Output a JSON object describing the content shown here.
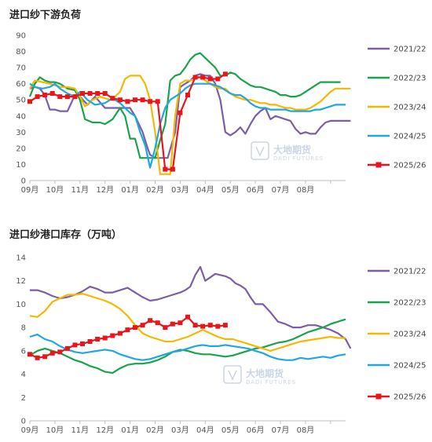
{
  "charts_meta": {
    "watermark": {
      "name": "大地期货",
      "sub": "DADI FUTURES"
    }
  },
  "chart_data": [
    {
      "type": "line",
      "title": "进口纱下游负荷",
      "xlabel": "",
      "ylabel": "",
      "ylim": [
        0,
        90
      ],
      "yticks": [
        0,
        10,
        20,
        30,
        40,
        50,
        60,
        70,
        80,
        90
      ],
      "month_labels": [
        "09月",
        "10月",
        "11月",
        "12月",
        "01月",
        "02月",
        "03月",
        "04月",
        "05月",
        "06月",
        "07月",
        "08月"
      ],
      "grid": false,
      "legend_position": "right",
      "series": [
        {
          "name": "2021/22",
          "color": "#7b5ea7",
          "marker": false,
          "x": [
            0,
            0.2,
            0.4,
            0.6,
            0.8,
            1.0,
            1.2,
            1.5,
            1.8,
            2.0,
            2.3,
            2.6,
            3.0,
            3.3,
            3.6,
            4.0,
            4.2,
            4.5,
            4.7,
            4.8,
            5.0,
            5.1,
            5.3,
            5.5,
            5.8,
            6.0,
            6.2,
            6.4,
            6.6,
            6.8,
            7.0,
            7.2,
            7.4,
            7.6,
            7.8,
            8.0,
            8.2,
            8.4,
            8.6,
            8.8,
            9.0,
            9.2,
            9.4,
            9.6,
            9.8,
            10.0,
            10.2,
            10.4,
            10.6,
            10.8,
            11.0,
            11.2,
            11.4,
            11.6,
            11.8,
            12.0,
            12.2,
            12.4,
            12.6,
            12.8
          ],
          "y": [
            57,
            58,
            57,
            53,
            44,
            44,
            43,
            43,
            53,
            52,
            47,
            52,
            45,
            45,
            45,
            45,
            40,
            30,
            20,
            16,
            14,
            14,
            14,
            14,
            30,
            58,
            60,
            62,
            65,
            66,
            65,
            65,
            60,
            50,
            30,
            28,
            30,
            33,
            29,
            35,
            40,
            43,
            45,
            38,
            40,
            39,
            38,
            37,
            32,
            29,
            30,
            29,
            29,
            33,
            36,
            37,
            37,
            37,
            37,
            37
          ]
        },
        {
          "name": "2022/23",
          "color": "#1aa34a",
          "marker": false,
          "x": [
            0,
            0.2,
            0.4,
            0.6,
            0.8,
            1.0,
            1.2,
            1.5,
            1.8,
            2.0,
            2.2,
            2.5,
            2.8,
            3.0,
            3.3,
            3.6,
            3.8,
            4.0,
            4.2,
            4.4,
            4.6,
            4.8,
            5.0,
            5.2,
            5.4,
            5.6,
            5.8,
            6.0,
            6.2,
            6.4,
            6.6,
            6.8,
            7.0,
            7.2,
            7.4,
            7.6,
            7.8,
            8.0,
            8.2,
            8.4,
            8.6,
            8.8,
            9.0,
            9.2,
            9.4,
            9.6,
            9.8,
            10.0,
            10.2,
            10.4,
            10.6,
            10.8,
            11.0,
            11.2,
            11.4,
            11.6,
            11.8,
            12.0,
            12.2,
            12.4
          ],
          "y": [
            52,
            60,
            64,
            62,
            61,
            61,
            60,
            57,
            56,
            50,
            38,
            36,
            36,
            35,
            38,
            45,
            40,
            26,
            26,
            14,
            14,
            14,
            14,
            25,
            35,
            62,
            65,
            66,
            70,
            75,
            78,
            79,
            76,
            73,
            70,
            65,
            65,
            67,
            66,
            63,
            61,
            59,
            58,
            58,
            57,
            56,
            55,
            53,
            53,
            52,
            52,
            53,
            55,
            57,
            59,
            61,
            61,
            61,
            61,
            61
          ]
        },
        {
          "name": "2023/24",
          "color": "#f5b800",
          "marker": false,
          "x": [
            0,
            0.2,
            0.5,
            0.8,
            1.0,
            1.2,
            1.5,
            1.8,
            2.0,
            2.2,
            2.5,
            2.8,
            3.0,
            3.2,
            3.4,
            3.6,
            3.8,
            4.0,
            4.2,
            4.4,
            4.6,
            4.8,
            5.0,
            5.2,
            5.4,
            5.6,
            5.8,
            6.0,
            6.2,
            6.4,
            6.6,
            6.8,
            7.0,
            7.2,
            7.4,
            7.6,
            7.8,
            8.0,
            8.2,
            8.4,
            8.6,
            8.8,
            9.0,
            9.2,
            9.4,
            9.6,
            9.8,
            10.0,
            10.2,
            10.4,
            10.6,
            10.8,
            11.0,
            11.2,
            11.4,
            11.6,
            11.8,
            12.0,
            12.2,
            12.4,
            12.6,
            12.8
          ],
          "y": [
            57,
            62,
            61,
            60,
            59,
            58,
            58,
            57,
            52,
            46,
            50,
            52,
            51,
            50,
            52,
            55,
            63,
            65,
            65,
            65,
            60,
            50,
            30,
            4,
            4,
            4,
            40,
            60,
            62,
            62,
            63,
            64,
            62,
            60,
            58,
            57,
            57,
            54,
            52,
            51,
            50,
            50,
            49,
            48,
            48,
            47,
            47,
            46,
            45,
            45,
            44,
            44,
            44,
            45,
            47,
            49,
            52,
            55,
            57,
            57,
            57,
            57
          ]
        },
        {
          "name": "2024/25",
          "color": "#1ea7e1",
          "marker": false,
          "x": [
            0,
            0.2,
            0.5,
            0.8,
            1.0,
            1.2,
            1.5,
            1.8,
            2.0,
            2.3,
            2.6,
            3.0,
            3.2,
            3.4,
            3.6,
            3.8,
            4.0,
            4.2,
            4.4,
            4.6,
            4.8,
            5.0,
            5.2,
            5.4,
            5.6,
            5.8,
            6.0,
            6.2,
            6.4,
            6.6,
            6.8,
            7.0,
            7.2,
            7.4,
            7.6,
            7.8,
            8.0,
            8.2,
            8.4,
            8.6,
            8.8,
            9.0,
            9.2,
            9.4,
            9.6,
            9.8,
            10.0,
            10.2,
            10.4,
            10.6,
            10.8,
            11.0,
            11.2,
            11.4,
            11.6,
            11.8,
            12.0,
            12.2,
            12.4,
            12.6
          ],
          "y": [
            60,
            58,
            57,
            58,
            60,
            57,
            54,
            52,
            55,
            50,
            47,
            48,
            50,
            50,
            48,
            45,
            42,
            40,
            30,
            22,
            8,
            20,
            35,
            45,
            50,
            52,
            54,
            57,
            59,
            60,
            60,
            60,
            60,
            59,
            58,
            56,
            54,
            53,
            53,
            51,
            48,
            46,
            45,
            45,
            44,
            44,
            44,
            44,
            43,
            43,
            43,
            43,
            43,
            44,
            44,
            45,
            46,
            47,
            47,
            47
          ]
        },
        {
          "name": "2025/26",
          "color": "#e8161b",
          "marker": true,
          "x": [
            0,
            0.3,
            0.6,
            0.9,
            1.2,
            1.5,
            1.8,
            2.1,
            2.4,
            2.7,
            3.0,
            3.3,
            3.6,
            3.9,
            4.2,
            4.5,
            4.8,
            5.1,
            5.4,
            5.7,
            6.0,
            6.3,
            6.6,
            6.9,
            7.2,
            7.5,
            7.8
          ],
          "y": [
            49,
            52,
            53,
            54,
            52,
            52,
            52,
            54,
            54,
            54,
            54,
            51,
            50,
            49,
            50,
            50,
            49,
            49,
            7,
            7,
            42,
            53,
            64,
            64,
            63,
            63,
            66
          ]
        }
      ]
    },
    {
      "type": "line",
      "title": "进口纱港口库存（万吨）",
      "xlabel": "",
      "ylabel": "",
      "ylim": [
        0,
        14
      ],
      "yticks": [
        0,
        2,
        4,
        6,
        8,
        10,
        12,
        14
      ],
      "month_labels": [
        "09月",
        "10月",
        "11月",
        "12月",
        "01月",
        "02月",
        "03月",
        "04月",
        "05月",
        "06月",
        "07月",
        "08月"
      ],
      "grid": false,
      "legend_position": "right",
      "series": [
        {
          "name": "2021/22",
          "color": "#7b5ea7",
          "marker": false,
          "x": [
            0,
            0.3,
            0.6,
            0.9,
            1.2,
            1.5,
            1.8,
            2.1,
            2.4,
            2.7,
            3.0,
            3.3,
            3.6,
            3.9,
            4.2,
            4.5,
            4.8,
            5.1,
            5.4,
            5.7,
            6.0,
            6.2,
            6.4,
            6.6,
            6.8,
            7.0,
            7.2,
            7.4,
            7.6,
            7.8,
            8.0,
            8.2,
            8.4,
            8.6,
            8.8,
            9.0,
            9.3,
            9.6,
            9.9,
            10.2,
            10.5,
            10.8,
            11.1,
            11.4,
            11.7,
            12.0,
            12.3,
            12.6,
            12.8
          ],
          "y": [
            11.2,
            11.2,
            11.0,
            10.7,
            10.5,
            10.6,
            10.8,
            11.1,
            11.5,
            11.3,
            11.0,
            11.0,
            11.2,
            11.4,
            11.0,
            10.6,
            10.3,
            10.4,
            10.6,
            10.8,
            11.0,
            11.2,
            11.5,
            12.5,
            13.2,
            12.0,
            12.3,
            12.6,
            12.5,
            12.4,
            12.2,
            11.8,
            11.6,
            11.3,
            10.6,
            10.0,
            10.0,
            9.3,
            8.5,
            8.3,
            8.0,
            8.0,
            8.2,
            8.2,
            8.0,
            7.8,
            7.5,
            7.0,
            6.2
          ]
        },
        {
          "name": "2022/23",
          "color": "#1aa34a",
          "marker": false,
          "x": [
            0,
            0.3,
            0.6,
            0.9,
            1.2,
            1.5,
            1.8,
            2.1,
            2.4,
            2.7,
            3.0,
            3.3,
            3.6,
            3.9,
            4.2,
            4.5,
            4.8,
            5.1,
            5.4,
            5.7,
            6.0,
            6.3,
            6.6,
            6.9,
            7.2,
            7.5,
            7.8,
            8.1,
            8.4,
            8.7,
            9.0,
            9.3,
            9.6,
            9.9,
            10.2,
            10.5,
            10.8,
            11.1,
            11.4,
            11.7,
            12.0,
            12.3,
            12.6
          ],
          "y": [
            5.6,
            6.0,
            6.2,
            6.0,
            5.8,
            5.5,
            5.2,
            5.0,
            4.7,
            4.5,
            4.2,
            4.1,
            4.5,
            4.8,
            4.9,
            4.9,
            5.0,
            5.2,
            5.5,
            5.9,
            6.1,
            6.0,
            5.8,
            5.7,
            5.7,
            5.6,
            5.5,
            5.6,
            5.8,
            6.0,
            6.2,
            6.3,
            6.5,
            6.7,
            6.8,
            7.0,
            7.3,
            7.6,
            7.8,
            8.0,
            8.3,
            8.5,
            8.7
          ]
        },
        {
          "name": "2023/24",
          "color": "#f5b800",
          "marker": false,
          "x": [
            0,
            0.3,
            0.6,
            0.9,
            1.2,
            1.5,
            1.8,
            2.1,
            2.4,
            2.7,
            3.0,
            3.3,
            3.6,
            3.9,
            4.2,
            4.5,
            4.8,
            5.1,
            5.4,
            5.7,
            6.0,
            6.3,
            6.6,
            6.9,
            7.2,
            7.5,
            7.8,
            8.1,
            8.4,
            8.7,
            9.0,
            9.3,
            9.6,
            9.9,
            10.2,
            10.5,
            10.8,
            11.1,
            11.4,
            11.7,
            12.0,
            12.3,
            12.6
          ],
          "y": [
            9.0,
            8.9,
            9.4,
            10.2,
            10.5,
            10.8,
            10.8,
            10.9,
            10.7,
            10.5,
            10.3,
            10.0,
            9.6,
            9.0,
            8.2,
            7.5,
            7.2,
            7.0,
            6.8,
            6.8,
            7.0,
            7.2,
            7.5,
            7.8,
            7.5,
            7.2,
            7.0,
            7.0,
            6.8,
            6.6,
            6.4,
            6.2,
            6.0,
            6.2,
            6.4,
            6.6,
            6.8,
            6.9,
            7.0,
            7.1,
            7.2,
            7.1,
            7.1
          ]
        },
        {
          "name": "2024/25",
          "color": "#1ea7e1",
          "marker": false,
          "x": [
            0,
            0.3,
            0.6,
            0.9,
            1.2,
            1.5,
            1.8,
            2.1,
            2.4,
            2.7,
            3.0,
            3.3,
            3.6,
            3.9,
            4.2,
            4.5,
            4.8,
            5.1,
            5.4,
            5.7,
            6.0,
            6.3,
            6.6,
            6.9,
            7.2,
            7.5,
            7.8,
            8.1,
            8.4,
            8.7,
            9.0,
            9.3,
            9.6,
            9.9,
            10.2,
            10.5,
            10.8,
            11.1,
            11.4,
            11.7,
            12.0,
            12.3,
            12.6
          ],
          "y": [
            7.2,
            7.4,
            7.0,
            6.8,
            6.4,
            6.1,
            5.9,
            5.8,
            5.9,
            6.0,
            6.1,
            6.0,
            5.7,
            5.5,
            5.3,
            5.2,
            5.3,
            5.5,
            5.7,
            5.9,
            6.0,
            6.2,
            6.4,
            6.5,
            6.4,
            6.4,
            6.5,
            6.4,
            6.3,
            6.2,
            6.0,
            5.8,
            5.5,
            5.3,
            5.2,
            5.2,
            5.4,
            5.3,
            5.4,
            5.5,
            5.4,
            5.6,
            5.7
          ]
        },
        {
          "name": "2025/26",
          "color": "#e8161b",
          "marker": true,
          "x": [
            0,
            0.3,
            0.6,
            0.9,
            1.2,
            1.5,
            1.8,
            2.1,
            2.4,
            2.7,
            3.0,
            3.3,
            3.6,
            3.9,
            4.2,
            4.5,
            4.8,
            5.1,
            5.4,
            5.7,
            6.0,
            6.3,
            6.6,
            6.9,
            7.2,
            7.5,
            7.8
          ],
          "y": [
            5.7,
            5.4,
            5.5,
            5.8,
            5.9,
            6.2,
            6.5,
            6.6,
            6.8,
            7.0,
            7.1,
            7.3,
            7.5,
            7.8,
            8.0,
            8.2,
            8.6,
            8.4,
            8.0,
            8.3,
            8.4,
            8.9,
            8.2,
            8.1,
            8.2,
            8.1,
            8.2
          ]
        }
      ]
    }
  ]
}
